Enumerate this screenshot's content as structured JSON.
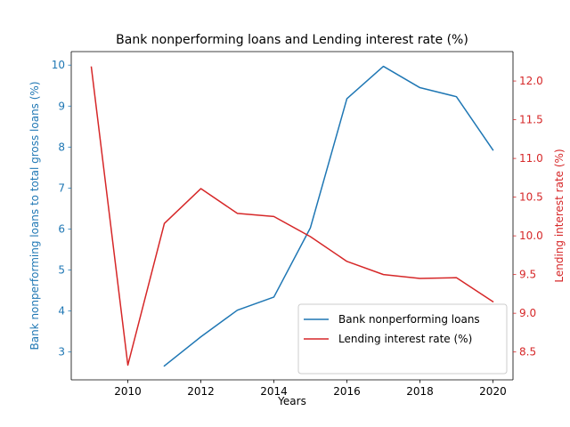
{
  "chart_data": {
    "type": "line",
    "title": "Bank nonperforming loans and Lending interest rate (%)",
    "xlabel": "Years",
    "ylabel_left": "Bank nonperforming loans to total gross loans (%)",
    "ylabel_right": "Lending interest rate (%)",
    "xlim": [
      2008.45,
      2020.55
    ],
    "ylim_left": [
      2.32,
      10.33
    ],
    "ylim_right": [
      8.14,
      12.38
    ],
    "x_ticks": [
      2010,
      2012,
      2014,
      2016,
      2018,
      2020
    ],
    "y_ticks_left": [
      3,
      4,
      5,
      6,
      7,
      8,
      9,
      10
    ],
    "y_ticks_right": [
      8.5,
      9.0,
      9.5,
      10.0,
      10.5,
      11.0,
      11.5,
      12.0
    ],
    "y_tick_labels_right": [
      "8.5",
      "9.0",
      "9.5",
      "10.0",
      "10.5",
      "11.0",
      "11.5",
      "12.0"
    ],
    "grid": false,
    "legend_position": "lower-right",
    "series": [
      {
        "name": "Bank nonperforming loans",
        "axis": "left",
        "color": "#1f77b4",
        "x": [
          2011,
          2012,
          2013,
          2014,
          2015,
          2016,
          2017,
          2018,
          2019,
          2020
        ],
        "y": [
          2.66,
          3.37,
          4.02,
          4.34,
          6.03,
          9.18,
          9.97,
          9.45,
          9.23,
          7.93
        ]
      },
      {
        "name": "Lending interest rate (%)",
        "axis": "right",
        "color": "#d62728",
        "x": [
          2009,
          2010,
          2011,
          2012,
          2013,
          2014,
          2015,
          2016,
          2017,
          2018,
          2019,
          2020
        ],
        "y": [
          12.18,
          8.33,
          10.16,
          10.61,
          10.29,
          10.25,
          9.99,
          9.67,
          9.5,
          9.45,
          9.46,
          9.15
        ]
      }
    ]
  }
}
